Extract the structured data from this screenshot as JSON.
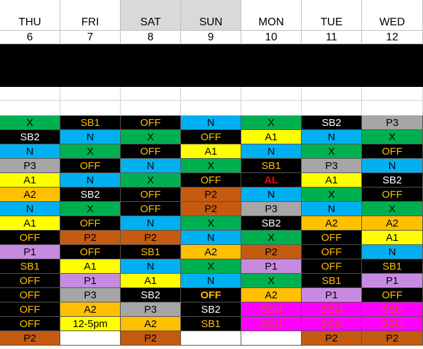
{
  "days": [
    {
      "name": "THU",
      "date": "6",
      "weekend": false
    },
    {
      "name": "FRI",
      "date": "7",
      "weekend": false
    },
    {
      "name": "SAT",
      "date": "8",
      "weekend": true
    },
    {
      "name": "SUN",
      "date": "9",
      "weekend": true
    },
    {
      "name": "MON",
      "date": "10",
      "weekend": false
    },
    {
      "name": "TUE",
      "date": "11",
      "weekend": false
    },
    {
      "name": "WED",
      "date": "12",
      "weekend": false
    }
  ],
  "legend_colors": {
    "X": "#00b050",
    "N": "#00b0f0",
    "A1": "#ffff00",
    "A2": "#ffc000",
    "P1": "#c68be0",
    "P2": "#c55a11",
    "P3": "#a6a6a6",
    "SB1": "#000000",
    "SB2": "#000000",
    "OFF": "#000000",
    "SSU": "#ff00ff",
    "AL": "#000000",
    "12-5pm": "#ffff00",
    "": "#ffffff"
  },
  "text_colors": {
    "X": "#000000",
    "N": "#000000",
    "A1": "#000000",
    "A2": "#000000",
    "P1": "#000000",
    "P2": "#000000",
    "P3": "#000000",
    "SB1": "#ffc000",
    "SB2": "#ffffff",
    "OFF": "#ffc000",
    "SSU": "#c55a11",
    "AL": "#ff0000",
    "12-5pm": "#000000",
    "": "#000000"
  },
  "rows": [
    [
      "X",
      "SB1",
      "OFF",
      "N",
      "X",
      "SB2",
      "P3"
    ],
    [
      "SB2",
      "N",
      "X",
      "OFF",
      "A1",
      "N",
      "X"
    ],
    [
      "N",
      "X",
      "OFF",
      "A1",
      "N",
      "X",
      "OFF"
    ],
    [
      "P3",
      "OFF",
      "N",
      "X",
      "SB1",
      "P3",
      "N"
    ],
    [
      "A1",
      "N",
      "X",
      "OFF",
      "AL",
      "A1",
      "SB2"
    ],
    [
      "A2",
      "SB2",
      "OFF",
      "P2",
      "N",
      "X",
      "OFF"
    ],
    [
      "N",
      "X",
      "OFF",
      "P2",
      "P3",
      "N",
      "X"
    ],
    [
      "A1",
      "OFF",
      "N",
      "X",
      "SB2",
      "A2",
      "A2"
    ],
    [
      "OFF",
      "P2",
      "P2",
      "N",
      "X",
      "OFF",
      "A1"
    ],
    [
      "P1",
      "OFF",
      "SB1",
      "A2",
      "P2",
      "OFF",
      "N"
    ],
    [
      "SB1",
      "A1",
      "N",
      "X",
      "P1",
      "OFF",
      "SB1"
    ],
    [
      "OFF",
      "P1",
      "A1",
      "N",
      "X",
      "SB1",
      "P1"
    ],
    [
      "OFF",
      "P3",
      "SB2",
      "OFF",
      "A2",
      "P1",
      "OFF"
    ],
    [
      "OFF",
      "A2",
      "P3",
      "SB2",
      "SSU",
      "SSU",
      "SSU"
    ],
    [
      "OFF",
      "12-5pm",
      "A2",
      "SB1",
      "SSU",
      "SSU",
      "SSU"
    ],
    [
      "P2",
      "",
      "P2",
      "",
      "",
      "P2",
      "P2"
    ]
  ],
  "bold_cells": [
    [
      4,
      4
    ],
    [
      12,
      3
    ]
  ]
}
